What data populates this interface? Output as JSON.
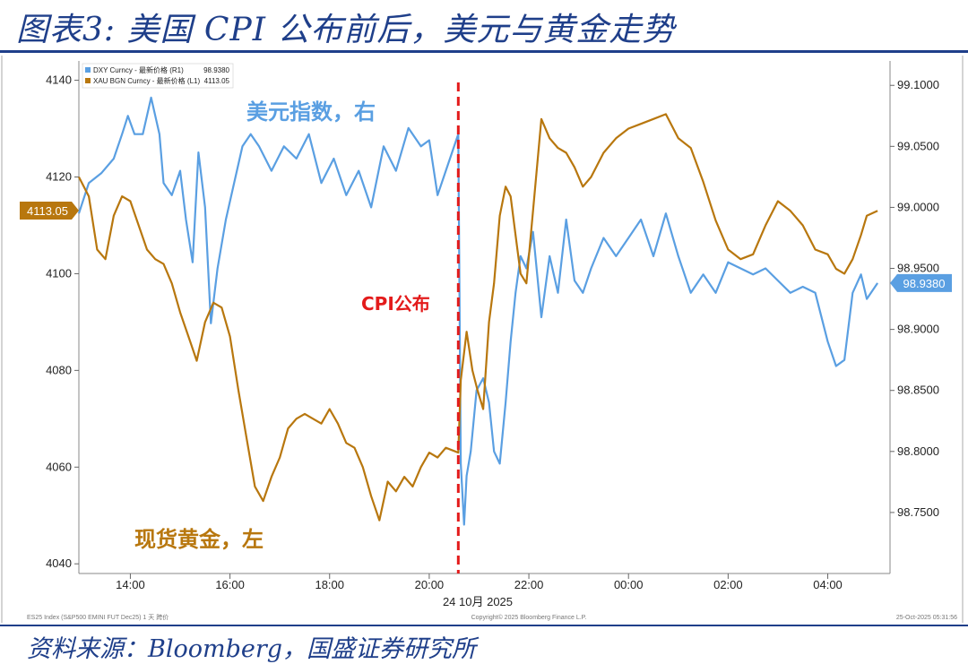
{
  "figure": {
    "title": "图表3: 美国 CPI 公布前后，美元与黄金走势",
    "source": "资料来源：Bloomberg，国盛证券研究所"
  },
  "colors": {
    "dxy": "#5a9fe2",
    "xau": "#b8770e",
    "event": "#e31b1b",
    "title": "#1f3f8a"
  },
  "chart_data": {
    "type": "line",
    "x_ticks": [
      "14:00",
      "16:00",
      "18:00",
      "20:00",
      "22:00",
      "00:00",
      "02:00",
      "04:00"
    ],
    "x_date_label": "24 10月 2025",
    "left_axis": {
      "ticks": [
        4040,
        4060,
        4080,
        4100,
        4120,
        4140
      ],
      "ylim": [
        4038,
        4144
      ]
    },
    "right_axis": {
      "ticks": [
        "98.7500",
        "98.8000",
        "98.8500",
        "98.9000",
        "98.9500",
        "99.0000",
        "99.0500",
        "99.1000"
      ],
      "ylim": [
        98.7,
        99.12
      ]
    },
    "legend": {
      "dxy": "DXY Curncy - 最新价格 (R1)",
      "dxy_value": "98.9380",
      "xau": "XAU BGN Curncy - 最新价格 (L1)",
      "xau_value": "4113.05"
    },
    "series": [
      {
        "key": "dxy",
        "name": "美元指数，右",
        "axis": "right",
        "points": [
          [
            "12:58",
            98.995
          ],
          [
            "13:10",
            99.02
          ],
          [
            "13:25",
            99.028
          ],
          [
            "13:40",
            99.04
          ],
          [
            "13:50",
            99.06
          ],
          [
            "13:57",
            99.075
          ],
          [
            "14:05",
            99.06
          ],
          [
            "14:15",
            99.06
          ],
          [
            "14:25",
            99.09
          ],
          [
            "14:35",
            99.06
          ],
          [
            "14:40",
            99.02
          ],
          [
            "14:50",
            99.01
          ],
          [
            "15:00",
            99.03
          ],
          [
            "15:07",
            98.99
          ],
          [
            "15:15",
            98.955
          ],
          [
            "15:22",
            99.045
          ],
          [
            "15:30",
            99.0
          ],
          [
            "15:37",
            98.905
          ],
          [
            "15:45",
            98.95
          ],
          [
            "15:55",
            98.99
          ],
          [
            "16:05",
            99.02
          ],
          [
            "16:15",
            99.05
          ],
          [
            "16:25",
            99.06
          ],
          [
            "16:35",
            99.05
          ],
          [
            "16:50",
            99.03
          ],
          [
            "17:05",
            99.05
          ],
          [
            "17:20",
            99.04
          ],
          [
            "17:35",
            99.06
          ],
          [
            "17:50",
            99.02
          ],
          [
            "18:05",
            99.04
          ],
          [
            "18:20",
            99.01
          ],
          [
            "18:35",
            99.03
          ],
          [
            "18:50",
            99.0
          ],
          [
            "19:05",
            99.05
          ],
          [
            "19:20",
            99.03
          ],
          [
            "19:35",
            99.065
          ],
          [
            "19:50",
            99.05
          ],
          [
            "20:00",
            99.055
          ],
          [
            "20:10",
            99.01
          ],
          [
            "20:20",
            99.03
          ],
          [
            "20:35",
            99.06
          ],
          [
            "20:38",
            98.79
          ],
          [
            "20:42",
            98.74
          ],
          [
            "20:45",
            98.78
          ],
          [
            "20:50",
            98.8
          ],
          [
            "20:57",
            98.85
          ],
          [
            "21:05",
            98.86
          ],
          [
            "21:12",
            98.84
          ],
          [
            "21:18",
            98.8
          ],
          [
            "21:25",
            98.79
          ],
          [
            "21:32",
            98.84
          ],
          [
            "21:38",
            98.89
          ],
          [
            "21:44",
            98.93
          ],
          [
            "21:50",
            98.96
          ],
          [
            "21:57",
            98.95
          ],
          [
            "22:05",
            98.98
          ],
          [
            "22:15",
            98.91
          ],
          [
            "22:25",
            98.96
          ],
          [
            "22:35",
            98.93
          ],
          [
            "22:45",
            98.99
          ],
          [
            "22:55",
            98.94
          ],
          [
            "23:05",
            98.93
          ],
          [
            "23:15",
            98.95
          ],
          [
            "23:30",
            98.975
          ],
          [
            "23:45",
            98.96
          ],
          [
            "00:00",
            98.975
          ],
          [
            "00:15",
            98.99
          ],
          [
            "00:30",
            98.96
          ],
          [
            "00:45",
            98.995
          ],
          [
            "01:00",
            98.96
          ],
          [
            "01:15",
            98.93
          ],
          [
            "01:30",
            98.945
          ],
          [
            "01:45",
            98.93
          ],
          [
            "02:00",
            98.955
          ],
          [
            "02:15",
            98.95
          ],
          [
            "02:30",
            98.945
          ],
          [
            "02:45",
            98.95
          ],
          [
            "03:00",
            98.94
          ],
          [
            "03:15",
            98.93
          ],
          [
            "03:30",
            98.935
          ],
          [
            "03:45",
            98.93
          ],
          [
            "04:00",
            98.89
          ],
          [
            "04:10",
            98.87
          ],
          [
            "04:20",
            98.875
          ],
          [
            "04:30",
            98.93
          ],
          [
            "04:40",
            98.945
          ],
          [
            "04:47",
            98.925
          ],
          [
            "05:00",
            98.938
          ]
        ]
      },
      {
        "key": "xau",
        "name": "现货黄金，左",
        "axis": "left",
        "points": [
          [
            "12:58",
            4120
          ],
          [
            "13:10",
            4116
          ],
          [
            "13:20",
            4105
          ],
          [
            "13:30",
            4103
          ],
          [
            "13:40",
            4112
          ],
          [
            "13:50",
            4116
          ],
          [
            "14:00",
            4115
          ],
          [
            "14:10",
            4110
          ],
          [
            "14:20",
            4105
          ],
          [
            "14:30",
            4103
          ],
          [
            "14:40",
            4102
          ],
          [
            "14:50",
            4098
          ],
          [
            "15:00",
            4092
          ],
          [
            "15:10",
            4087
          ],
          [
            "15:20",
            4082
          ],
          [
            "15:30",
            4090
          ],
          [
            "15:40",
            4094
          ],
          [
            "15:50",
            4093
          ],
          [
            "16:00",
            4087
          ],
          [
            "16:10",
            4076
          ],
          [
            "16:20",
            4066
          ],
          [
            "16:30",
            4056
          ],
          [
            "16:40",
            4053
          ],
          [
            "16:50",
            4058
          ],
          [
            "17:00",
            4062
          ],
          [
            "17:10",
            4068
          ],
          [
            "17:20",
            4070
          ],
          [
            "17:30",
            4071
          ],
          [
            "17:40",
            4070
          ],
          [
            "17:50",
            4069
          ],
          [
            "18:00",
            4072
          ],
          [
            "18:10",
            4069
          ],
          [
            "18:20",
            4065
          ],
          [
            "18:30",
            4064
          ],
          [
            "18:40",
            4060
          ],
          [
            "18:50",
            4054
          ],
          [
            "19:00",
            4049
          ],
          [
            "19:10",
            4057
          ],
          [
            "19:20",
            4055
          ],
          [
            "19:30",
            4058
          ],
          [
            "19:40",
            4056
          ],
          [
            "19:50",
            4060
          ],
          [
            "20:00",
            4063
          ],
          [
            "20:10",
            4062
          ],
          [
            "20:20",
            4064
          ],
          [
            "20:35",
            4063
          ],
          [
            "20:38",
            4078
          ],
          [
            "20:45",
            4088
          ],
          [
            "20:52",
            4080
          ],
          [
            "20:58",
            4076
          ],
          [
            "21:05",
            4072
          ],
          [
            "21:12",
            4090
          ],
          [
            "21:18",
            4098
          ],
          [
            "21:25",
            4112
          ],
          [
            "21:32",
            4118
          ],
          [
            "21:38",
            4116
          ],
          [
            "21:44",
            4108
          ],
          [
            "21:50",
            4100
          ],
          [
            "21:57",
            4098
          ],
          [
            "22:05",
            4113
          ],
          [
            "22:15",
            4132
          ],
          [
            "22:25",
            4128
          ],
          [
            "22:35",
            4126
          ],
          [
            "22:45",
            4125
          ],
          [
            "22:55",
            4122
          ],
          [
            "23:05",
            4118
          ],
          [
            "23:15",
            4120
          ],
          [
            "23:30",
            4125
          ],
          [
            "23:45",
            4128
          ],
          [
            "00:00",
            4130
          ],
          [
            "00:15",
            4131
          ],
          [
            "00:30",
            4132
          ],
          [
            "00:45",
            4133
          ],
          [
            "01:00",
            4128
          ],
          [
            "01:15",
            4126
          ],
          [
            "01:30",
            4119
          ],
          [
            "01:45",
            4111
          ],
          [
            "02:00",
            4105
          ],
          [
            "02:15",
            4103
          ],
          [
            "02:30",
            4104
          ],
          [
            "02:45",
            4110
          ],
          [
            "03:00",
            4115
          ],
          [
            "03:15",
            4113
          ],
          [
            "03:30",
            4110
          ],
          [
            "03:45",
            4105
          ],
          [
            "04:00",
            4104
          ],
          [
            "04:10",
            4101
          ],
          [
            "04:20",
            4100
          ],
          [
            "04:30",
            4103
          ],
          [
            "04:40",
            4108
          ],
          [
            "04:47",
            4112
          ],
          [
            "05:00",
            4113
          ]
        ]
      }
    ],
    "last_value_tags": {
      "left": "4113.05",
      "right": "98.9380"
    },
    "annotations": {
      "event_label": "CPI公布",
      "event_time": "20:35"
    },
    "series_labels": {
      "dxy": "美元指数，右",
      "xau": "现货黄金，左"
    },
    "fine_print": {
      "left": "ES25 Index (S&P500 EMINI FUT Dec25) 1 天 跨价",
      "center": "Copyright© 2025 Bloomberg Finance L.P.",
      "right": "25-Oct-2025 05:31:56"
    },
    "grid": false
  }
}
